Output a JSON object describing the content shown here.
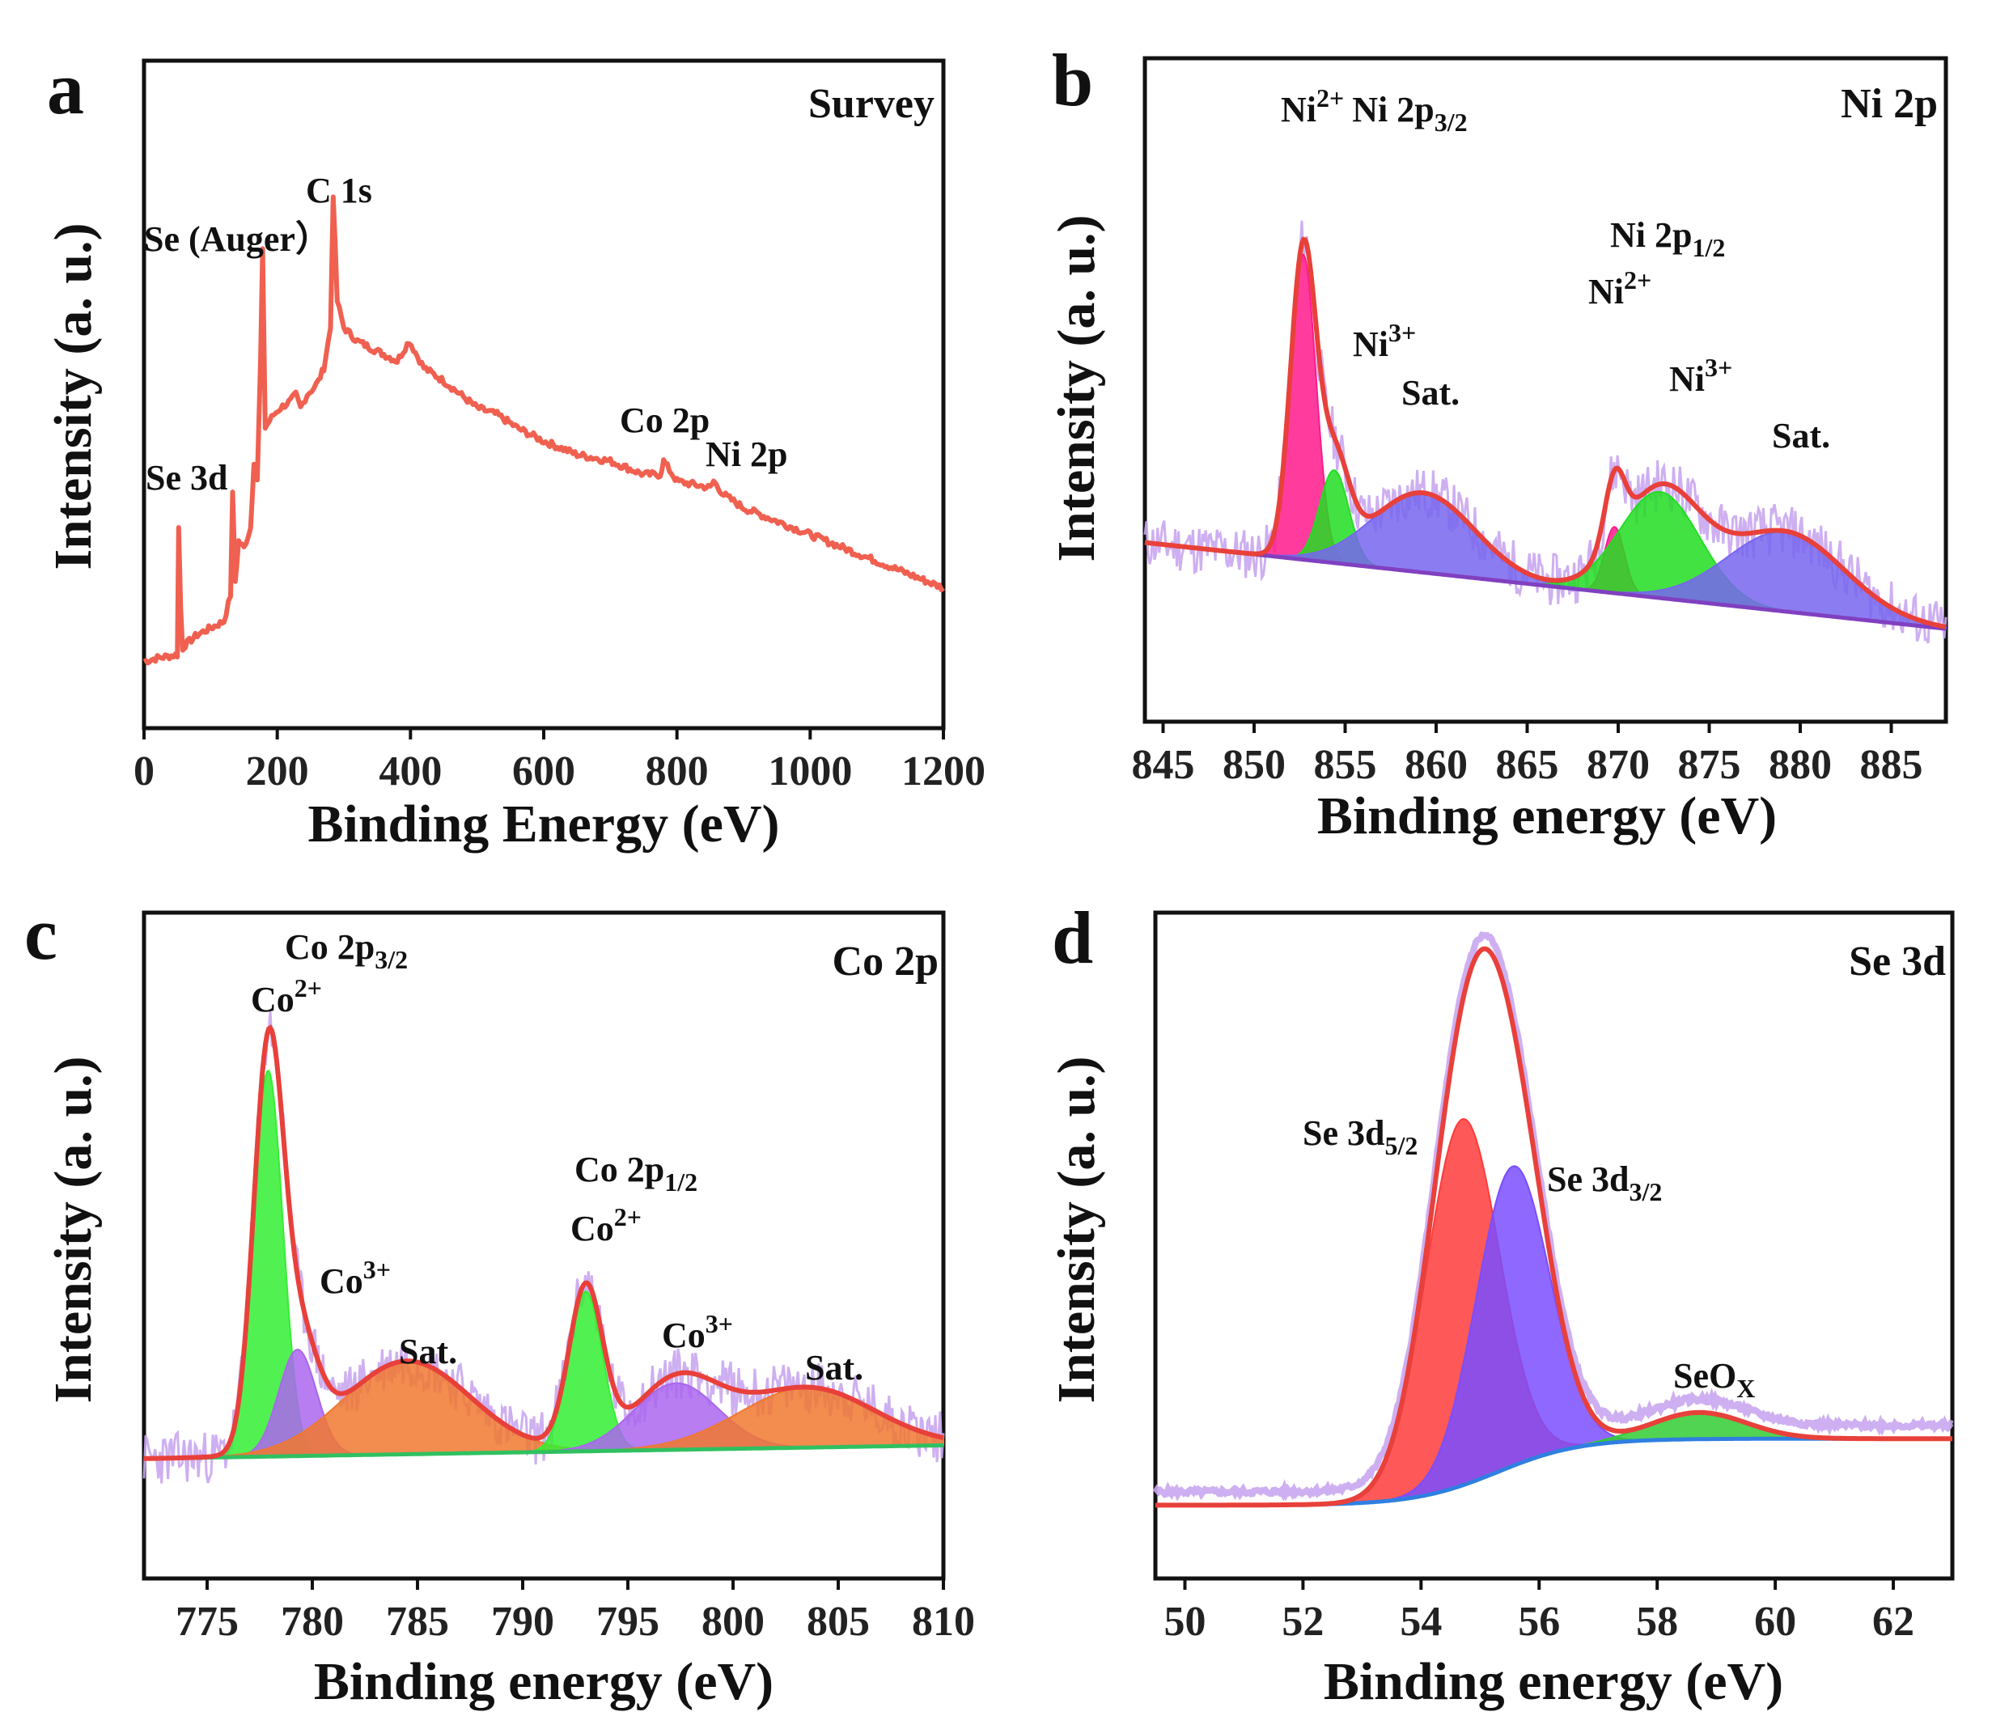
{
  "chart_data": [
    {
      "panel": "a",
      "type": "line",
      "title": "Survey",
      "xlabel": "Binding Energy (eV)",
      "ylabel": "Intensity (a. u.)",
      "xlim": [
        0,
        1200
      ],
      "ylim": [
        0,
        1
      ],
      "xticks": [
        0,
        200,
        400,
        600,
        800,
        1000,
        1200
      ],
      "series": [
        {
          "name": "Survey spectrum",
          "color": "#f06050",
          "x": [
            0,
            20,
            50,
            52,
            55,
            58,
            62,
            80,
            100,
            120,
            130,
            133,
            137,
            142,
            150,
            160,
            165,
            170,
            175,
            178,
            182,
            188,
            195,
            205,
            220,
            228,
            235,
            245,
            255,
            262,
            270,
            280,
            284,
            290,
            300,
            320,
            340,
            360,
            380,
            398,
            420,
            450,
            500,
            530,
            560,
            600,
            650,
            700,
            750,
            775,
            780,
            800,
            850,
            855,
            870,
            900,
            1000,
            1100,
            1200
          ],
          "y": [
            0.1,
            0.105,
            0.11,
            0.3,
            0.18,
            0.12,
            0.125,
            0.14,
            0.15,
            0.16,
            0.2,
            0.35,
            0.22,
            0.28,
            0.27,
            0.3,
            0.4,
            0.37,
            0.55,
            0.72,
            0.45,
            0.46,
            0.47,
            0.48,
            0.49,
            0.5,
            0.48,
            0.5,
            0.51,
            0.52,
            0.54,
            0.6,
            0.8,
            0.64,
            0.6,
            0.58,
            0.57,
            0.56,
            0.55,
            0.58,
            0.54,
            0.52,
            0.48,
            0.47,
            0.45,
            0.43,
            0.41,
            0.4,
            0.38,
            0.38,
            0.4,
            0.37,
            0.36,
            0.37,
            0.35,
            0.33,
            0.29,
            0.25,
            0.21
          ]
        }
      ],
      "annotations": [
        {
          "text": "Se 3d",
          "x": 55
        },
        {
          "text": "Se (Auger）",
          "x": 180
        },
        {
          "text": "C 1s",
          "x": 284
        },
        {
          "text": "Co 2p",
          "x": 780
        },
        {
          "text": "Ni 2p",
          "x": 855
        }
      ]
    },
    {
      "panel": "b",
      "type": "line",
      "title": "Ni 2p",
      "xlabel": "Binding energy (eV)",
      "ylabel": "Intensity (a. u.)",
      "xlim": [
        844,
        888
      ],
      "ylim": [
        0,
        1
      ],
      "xticks": [
        845,
        850,
        855,
        860,
        865,
        870,
        875,
        880,
        885
      ],
      "baseline": {
        "x": [
          844,
          888
        ],
        "y": [
          0.27,
          0.14
        ],
        "color": "#8040c0"
      },
      "raw_noise": {
        "color": "#c9a6f0",
        "amplitude": 0.04
      },
      "components": [
        {
          "name": "Ni2+ 2p3/2",
          "center": 852.7,
          "height": 0.46,
          "width": 0.7,
          "color": "#ff1a8c"
        },
        {
          "name": "Ni3+ 2p3/2",
          "center": 854.4,
          "height": 0.14,
          "width": 0.8,
          "color": "#22dd22"
        },
        {
          "name": "Sat.",
          "center": 859.3,
          "height": 0.12,
          "width": 2.8,
          "color": "#7766ee"
        },
        {
          "name": "Ni2+ 2p1/2",
          "center": 869.8,
          "height": 0.1,
          "width": 0.55,
          "color": "#ff1a8c"
        },
        {
          "name": "Ni3+ 2p1/2",
          "center": 872.3,
          "height": 0.16,
          "width": 2.2,
          "color": "#22dd22"
        },
        {
          "name": "Sat.",
          "center": 879.2,
          "height": 0.12,
          "width": 3.2,
          "color": "#7766ee"
        }
      ],
      "envelope_color": "#e8403a",
      "annotations": [
        {
          "text": "Ni2+ Ni 2p3/2",
          "x": 852.7
        },
        {
          "text": "Ni3+",
          "x": 854.4
        },
        {
          "text": "Sat.",
          "x": 859.3
        },
        {
          "text": "Ni 2p1/2",
          "x": 869.8
        },
        {
          "text": "Ni2+",
          "x": 869.8
        },
        {
          "text": "Ni3+",
          "x": 872.3
        },
        {
          "text": "Sat.",
          "x": 879.2
        }
      ]
    },
    {
      "panel": "c",
      "type": "line",
      "title": "Co 2p",
      "xlabel": "Binding energy (eV)",
      "ylabel": "Intensity (a. u.)",
      "xlim": [
        772,
        810
      ],
      "ylim": [
        0,
        1
      ],
      "xticks": [
        775,
        780,
        785,
        790,
        795,
        800,
        805,
        810
      ],
      "baseline": {
        "x": [
          772,
          810
        ],
        "y": [
          0.18,
          0.2
        ],
        "color": "#30c060"
      },
      "raw_noise": {
        "color": "#c9a6f0",
        "amplitude": 0.04
      },
      "components": [
        {
          "name": "Co2+ 2p3/2",
          "center": 777.9,
          "height": 0.58,
          "width": 0.7,
          "color": "#33ee33"
        },
        {
          "name": "Co3+ 2p3/2",
          "center": 779.3,
          "height": 0.16,
          "width": 0.9,
          "color": "#aa66ee"
        },
        {
          "name": "Sat.",
          "center": 784.5,
          "height": 0.14,
          "width": 3.0,
          "color": "#f07830"
        },
        {
          "name": "Co2+ 2p1/2",
          "center": 793.0,
          "height": 0.24,
          "width": 0.8,
          "color": "#33ee33"
        },
        {
          "name": "Co3+ 2p1/2",
          "center": 797.3,
          "height": 0.1,
          "width": 2.0,
          "color": "#aa66ee"
        },
        {
          "name": "Sat.",
          "center": 803.5,
          "height": 0.09,
          "width": 3.2,
          "color": "#f07830"
        }
      ],
      "envelope_color": "#e8403a",
      "annotations": [
        {
          "text": "Co 2p3/2",
          "x": 779
        },
        {
          "text": "Co2+",
          "x": 777.9
        },
        {
          "text": "Co3+",
          "x": 780.5
        },
        {
          "text": "Sat.",
          "x": 786
        },
        {
          "text": "Co 2p1/2",
          "x": 793
        },
        {
          "text": "Co2+",
          "x": 793
        },
        {
          "text": "Co3+",
          "x": 798
        },
        {
          "text": "Sat.",
          "x": 804
        }
      ]
    },
    {
      "panel": "d",
      "type": "line",
      "title": "Se 3d",
      "xlabel": "Binding energy (eV)",
      "ylabel": "Intensity (a. u.)",
      "xlim": [
        49.5,
        63
      ],
      "ylim": [
        0,
        1
      ],
      "xticks": [
        50,
        52,
        54,
        56,
        58,
        60,
        62
      ],
      "baseline": {
        "type": "shirley",
        "low": 0.11,
        "high": 0.21,
        "step_center": 55.3,
        "step_width": 0.7,
        "color": "#2f7fe0"
      },
      "components": [
        {
          "name": "Se 3d5/2",
          "center": 54.7,
          "height": 0.55,
          "width": 0.62,
          "color": "#ff3b3b"
        },
        {
          "name": "Se 3d3/2",
          "center": 55.55,
          "height": 0.45,
          "width": 0.62,
          "color": "#7a4dff"
        },
        {
          "name": "SeOx",
          "center": 58.7,
          "height": 0.04,
          "width": 0.8,
          "color": "#33cc33"
        }
      ],
      "envelope_color": "#e8403a",
      "annotations": [
        {
          "text": "Se 3d5/2",
          "x": 54.7
        },
        {
          "text": "Se 3d3/2",
          "x": 55.55
        },
        {
          "text": "SeOX",
          "x": 58.7
        }
      ]
    }
  ],
  "panels": [
    {
      "letter": "a",
      "title": "Survey",
      "xlabel": "Binding Energy (eV)",
      "ylabel": "Intensity (a. u.)"
    },
    {
      "letter": "b",
      "title": "Ni 2p",
      "xlabel": "Binding energy (eV)",
      "ylabel": "Intensity (a. u.)"
    },
    {
      "letter": "c",
      "title": "Co 2p",
      "xlabel": "Binding energy (eV)",
      "ylabel": "Intensity (a. u.)"
    },
    {
      "letter": "d",
      "title": "Se 3d",
      "xlabel": "Binding energy (eV)",
      "ylabel": "Intensity (a. u.)"
    }
  ],
  "labels": {
    "a": {
      "se3d": "Se 3d",
      "auger": "Se (Auger）",
      "c1s": "C 1s",
      "co2p": "Co 2p",
      "ni2p": "Ni 2p"
    },
    "b": {
      "ni2": "Ni",
      "sup2": "2+",
      "ni2p32_a": "Ni 2p",
      "ni2p32_sub": "3/2",
      "ni3a": "Ni",
      "sup3": "3+",
      "sat1": "Sat.",
      "ni2p12_a": "Ni 2p",
      "ni2p12_sub": "1/2",
      "ni2b": "Ni",
      "ni3b": "Ni",
      "sat2": "Sat."
    },
    "c": {
      "co2p32": "Co 2p",
      "sub32": "3/2",
      "co2a": "Co",
      "sup2": "2+",
      "co3a": "Co",
      "sup3": "3+",
      "sat1": "Sat.",
      "co2p12": "Co 2p",
      "sub12": "1/2",
      "co2b": "Co",
      "co3b": "Co",
      "sat2": "Sat."
    },
    "d": {
      "se52": "Se 3d",
      "sub52": "5/2",
      "se32": "Se 3d",
      "sub32": "3/2",
      "seox": "SeO",
      "subx": "X"
    }
  }
}
